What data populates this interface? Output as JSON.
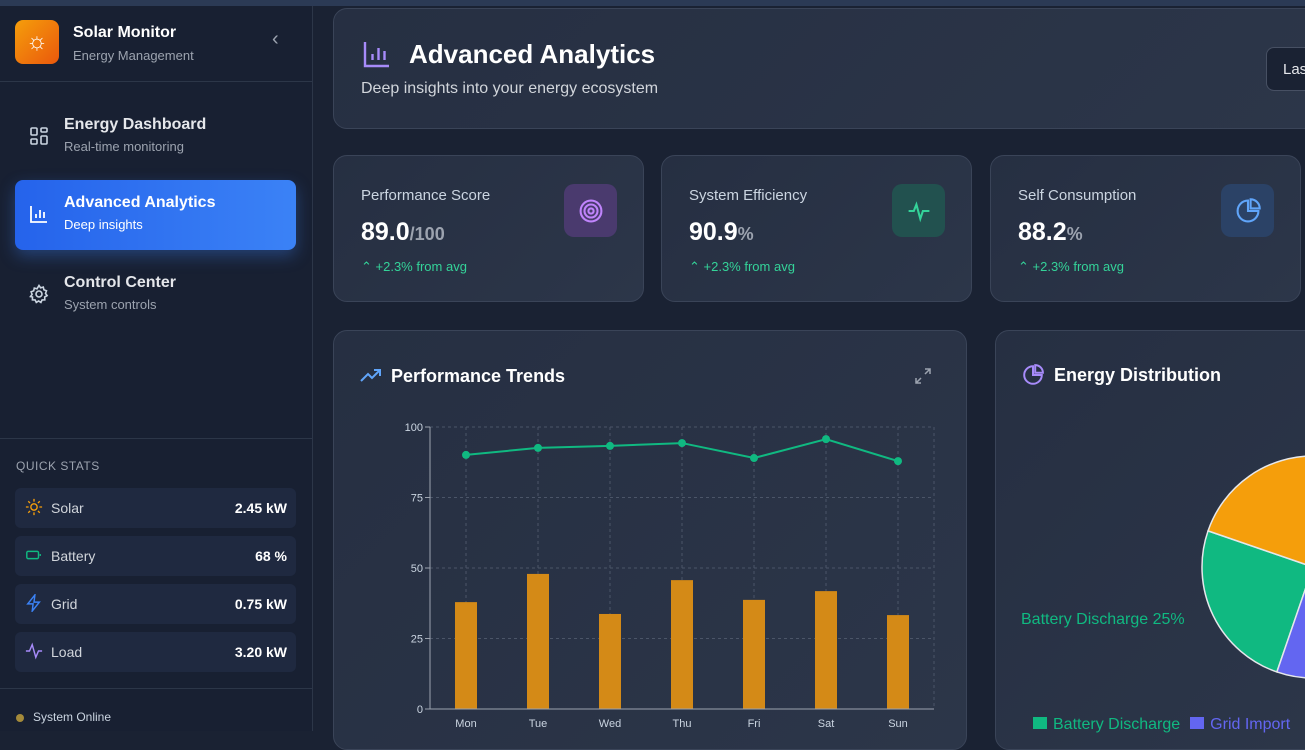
{
  "sidebar": {
    "brand": {
      "title": "Solar Monitor",
      "subtitle": "Energy Management"
    },
    "nav": [
      {
        "label": "Energy Dashboard",
        "sub": "Real-time monitoring",
        "icon": "grid-icon"
      },
      {
        "label": "Advanced Analytics",
        "sub": "Deep insights",
        "icon": "bar-chart-icon",
        "active": true
      },
      {
        "label": "Control Center",
        "sub": "System controls",
        "icon": "gear-icon"
      }
    ],
    "quick_stats_title": "QUICK STATS",
    "quick_stats": [
      {
        "label": "Solar",
        "value": "2.45 kW",
        "icon": "sun-icon",
        "color": "#f59e0b"
      },
      {
        "label": "Battery",
        "value": "68 %",
        "icon": "battery-icon",
        "color": "#10b981"
      },
      {
        "label": "Grid",
        "value": "0.75 kW",
        "icon": "lightning-icon",
        "color": "#3b82f6"
      },
      {
        "label": "Load",
        "value": "3.20 kW",
        "icon": "activity-icon",
        "color": "#a78bfa"
      }
    ],
    "status": "System Online"
  },
  "header": {
    "title": "Advanced Analytics",
    "subtitle": "Deep insights into your energy ecosystem",
    "range_button": "Las"
  },
  "stats": [
    {
      "label": "Performance Score",
      "value": "89.0",
      "unit": "/100",
      "trend": "+2.3% from avg",
      "icon": "target-icon",
      "color": "#c084fc"
    },
    {
      "label": "System Efficiency",
      "value": "90.9",
      "unit": "%",
      "trend": "+2.3% from avg",
      "icon": "activity-icon",
      "color": "#34d399"
    },
    {
      "label": "Self Consumption",
      "value": "88.2",
      "unit": "%",
      "trend": "+2.3% from avg",
      "icon": "pie-icon",
      "color": "#60a5fa"
    }
  ],
  "trends_title": "Performance Trends",
  "distribution_title": "Energy Distribution",
  "chart_data": [
    {
      "type": "bar+line",
      "categories": [
        "Mon",
        "Tue",
        "Wed",
        "Thu",
        "Fri",
        "Sat",
        "Sun"
      ],
      "series": [
        {
          "type": "line",
          "color": "#10b981",
          "values": [
            90.1,
            92.6,
            93.3,
            94.3,
            89.0,
            95.7,
            87.9
          ]
        },
        {
          "type": "bar",
          "color": "#d48a17",
          "values": [
            37.9,
            47.9,
            33.7,
            45.7,
            38.7,
            41.8,
            33.3
          ]
        }
      ],
      "ylim": [
        0,
        100
      ],
      "yticks": [
        0,
        25,
        50,
        75,
        100
      ],
      "grid": true
    },
    {
      "type": "pie",
      "slices": [
        {
          "name": "Battery Discharge",
          "value": 25,
          "color": "#10b981"
        },
        {
          "name": "Grid Import",
          "value": 55,
          "color": "#6366f1"
        },
        {
          "name": "",
          "value": 20,
          "color": "#f59e0b"
        }
      ],
      "data_label": "Battery Discharge 25%",
      "legend": "bottom"
    }
  ]
}
